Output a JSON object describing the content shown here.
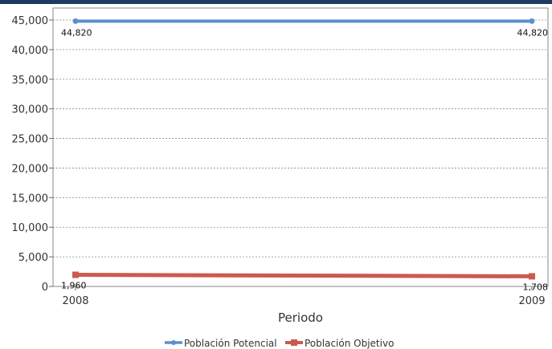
{
  "chart_data": {
    "type": "line",
    "x": [
      "2008",
      "2009"
    ],
    "series": [
      {
        "name": "Población Potencial",
        "values": [
          44820,
          44820
        ],
        "labels": [
          "44,820",
          "44,820"
        ],
        "color": "#5b8fd0"
      },
      {
        "name": "Población Objetivo",
        "values": [
          1960,
          1708
        ],
        "labels": [
          "1,960",
          "1,708"
        ],
        "color": "#cc5a4f"
      }
    ],
    "xlabel": "Periodo",
    "ylabel": "",
    "ylim": [
      0,
      45000
    ],
    "yticks": [
      0,
      5000,
      10000,
      15000,
      20000,
      25000,
      30000,
      35000,
      40000,
      45000
    ],
    "ytick_labels": [
      "0",
      "5,000",
      "10,000",
      "15,000",
      "20,000",
      "25,000",
      "30,000",
      "35,000",
      "40,000",
      "45,000"
    ],
    "grid": true,
    "legend_position": "bottom"
  }
}
